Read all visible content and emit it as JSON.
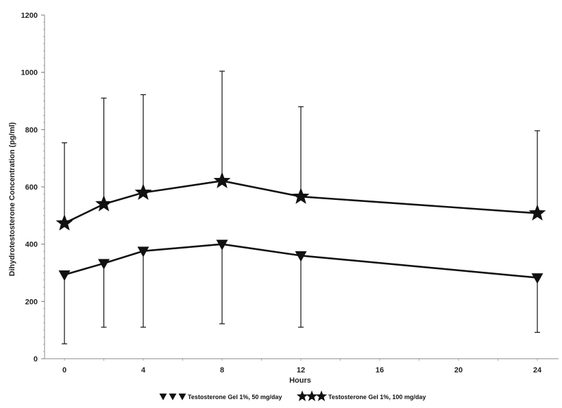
{
  "chart_data": {
    "type": "line",
    "xlabel": "Hours",
    "ylabel": "Dihydrotestosterone Concentration (pg/ml)",
    "xlim": [
      0,
      24
    ],
    "ylim": [
      0,
      1200
    ],
    "xticks": [
      0,
      4,
      8,
      12,
      16,
      20,
      24
    ],
    "yticks": [
      0,
      200,
      400,
      600,
      800,
      1000,
      1200
    ],
    "grid": false,
    "legend_position": "bottom",
    "series": [
      {
        "name": "Testosterone Gel 1%, 50 mg/day",
        "marker": "triangle-down",
        "x": [
          0,
          2,
          4,
          8,
          12,
          24
        ],
        "y": [
          293,
          333,
          376,
          400,
          360,
          283
        ],
        "error_lower": [
          52,
          110,
          110,
          122,
          110,
          92
        ],
        "error_upper": null
      },
      {
        "name": "Testosterone Gel 1%, 100 mg/day",
        "marker": "star",
        "x": [
          0,
          2,
          4,
          8,
          12,
          24
        ],
        "y": [
          473,
          540,
          580,
          621,
          566,
          508
        ],
        "error_lower": null,
        "error_upper": [
          754,
          910,
          922,
          1004,
          880,
          796
        ]
      }
    ]
  }
}
